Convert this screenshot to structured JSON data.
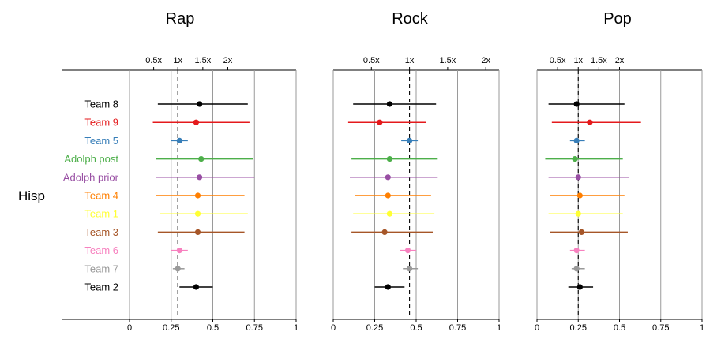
{
  "row_label": "Hisp",
  "team_labels": [
    "Team 8",
    "Team 9",
    "Team 5",
    "Adolph post",
    "Adolph prior",
    "Team 4",
    "Team 1",
    "Team 3",
    "Team 6",
    "Team 7",
    "Team 2"
  ],
  "team_colors": [
    "#000000",
    "#e41a1c",
    "#377eb8",
    "#4daf4a",
    "#984ea3",
    "#ff7f00",
    "#ffff33",
    "#a65628",
    "#f781bf",
    "#999999",
    "#000000"
  ],
  "chart_data": [
    {
      "type": "forest",
      "title": "Rap",
      "x_ticks": [
        "0",
        "0.25",
        "0.5",
        "0.75",
        "1"
      ],
      "top_ticks": [
        {
          "label": "0.5x",
          "value": 0.145
        },
        {
          "label": "1x",
          "value": 0.29
        },
        {
          "label": "1.5x",
          "value": 0.44
        },
        {
          "label": "2x",
          "value": 0.59
        }
      ],
      "reference_line": 0.29,
      "xlim": [
        0,
        1
      ],
      "points": [
        {
          "team": "Team 8",
          "estimate": 0.42,
          "lower": 0.17,
          "upper": 0.71
        },
        {
          "team": "Team 9",
          "estimate": 0.4,
          "lower": 0.14,
          "upper": 0.72
        },
        {
          "team": "Team 5",
          "estimate": 0.3,
          "lower": 0.25,
          "upper": 0.35
        },
        {
          "team": "Adolph post",
          "estimate": 0.43,
          "lower": 0.16,
          "upper": 0.74
        },
        {
          "team": "Adolph prior",
          "estimate": 0.42,
          "lower": 0.16,
          "upper": 0.75
        },
        {
          "team": "Team 4",
          "estimate": 0.41,
          "lower": 0.16,
          "upper": 0.69
        },
        {
          "team": "Team 1",
          "estimate": 0.41,
          "lower": 0.18,
          "upper": 0.71
        },
        {
          "team": "Team 3",
          "estimate": 0.41,
          "lower": 0.17,
          "upper": 0.69
        },
        {
          "team": "Team 6",
          "estimate": 0.3,
          "lower": 0.25,
          "upper": 0.35
        },
        {
          "team": "Team 7",
          "estimate": 0.29,
          "lower": 0.26,
          "upper": 0.33
        },
        {
          "team": "Team 2",
          "estimate": 0.4,
          "lower": 0.3,
          "upper": 0.5
        }
      ]
    },
    {
      "type": "forest",
      "title": "Rock",
      "x_ticks": [
        "0",
        "0.25",
        "0.5",
        "0.75",
        "1"
      ],
      "top_ticks": [
        {
          "label": "0.5x",
          "value": 0.23
        },
        {
          "label": "1x",
          "value": 0.46
        },
        {
          "label": "1.5x",
          "value": 0.69
        },
        {
          "label": "2x",
          "value": 0.92
        }
      ],
      "reference_line": 0.46,
      "xlim": [
        0,
        1
      ],
      "points": [
        {
          "team": "Team 8",
          "estimate": 0.34,
          "lower": 0.12,
          "upper": 0.62
        },
        {
          "team": "Team 9",
          "estimate": 0.28,
          "lower": 0.09,
          "upper": 0.56
        },
        {
          "team": "Team 5",
          "estimate": 0.46,
          "lower": 0.41,
          "upper": 0.51
        },
        {
          "team": "Adolph post",
          "estimate": 0.34,
          "lower": 0.11,
          "upper": 0.63
        },
        {
          "team": "Adolph prior",
          "estimate": 0.33,
          "lower": 0.1,
          "upper": 0.63
        },
        {
          "team": "Team 4",
          "estimate": 0.33,
          "lower": 0.13,
          "upper": 0.59
        },
        {
          "team": "Team 1",
          "estimate": 0.34,
          "lower": 0.12,
          "upper": 0.61
        },
        {
          "team": "Team 3",
          "estimate": 0.31,
          "lower": 0.11,
          "upper": 0.6
        },
        {
          "team": "Team 6",
          "estimate": 0.45,
          "lower": 0.4,
          "upper": 0.5
        },
        {
          "team": "Team 7",
          "estimate": 0.46,
          "lower": 0.42,
          "upper": 0.51
        },
        {
          "team": "Team 2",
          "estimate": 0.33,
          "lower": 0.25,
          "upper": 0.43
        }
      ]
    },
    {
      "type": "forest",
      "title": "Pop",
      "x_ticks": [
        "0",
        "0.25",
        "0.5",
        "0.75",
        "1"
      ],
      "top_ticks": [
        {
          "label": "0.5x",
          "value": 0.125
        },
        {
          "label": "1x",
          "value": 0.25
        },
        {
          "label": "1.5x",
          "value": 0.375
        },
        {
          "label": "2x",
          "value": 0.5
        }
      ],
      "reference_line": 0.25,
      "xlim": [
        0,
        1
      ],
      "points": [
        {
          "team": "Team 8",
          "estimate": 0.24,
          "lower": 0.07,
          "upper": 0.53
        },
        {
          "team": "Team 9",
          "estimate": 0.32,
          "lower": 0.09,
          "upper": 0.63
        },
        {
          "team": "Team 5",
          "estimate": 0.24,
          "lower": 0.2,
          "upper": 0.29
        },
        {
          "team": "Adolph post",
          "estimate": 0.23,
          "lower": 0.05,
          "upper": 0.52
        },
        {
          "team": "Adolph prior",
          "estimate": 0.25,
          "lower": 0.07,
          "upper": 0.56
        },
        {
          "team": "Team 4",
          "estimate": 0.26,
          "lower": 0.08,
          "upper": 0.53
        },
        {
          "team": "Team 1",
          "estimate": 0.25,
          "lower": 0.07,
          "upper": 0.52
        },
        {
          "team": "Team 3",
          "estimate": 0.27,
          "lower": 0.08,
          "upper": 0.55
        },
        {
          "team": "Team 6",
          "estimate": 0.24,
          "lower": 0.2,
          "upper": 0.29
        },
        {
          "team": "Team 7",
          "estimate": 0.24,
          "lower": 0.21,
          "upper": 0.29
        },
        {
          "team": "Team 2",
          "estimate": 0.26,
          "lower": 0.19,
          "upper": 0.34
        }
      ]
    }
  ]
}
